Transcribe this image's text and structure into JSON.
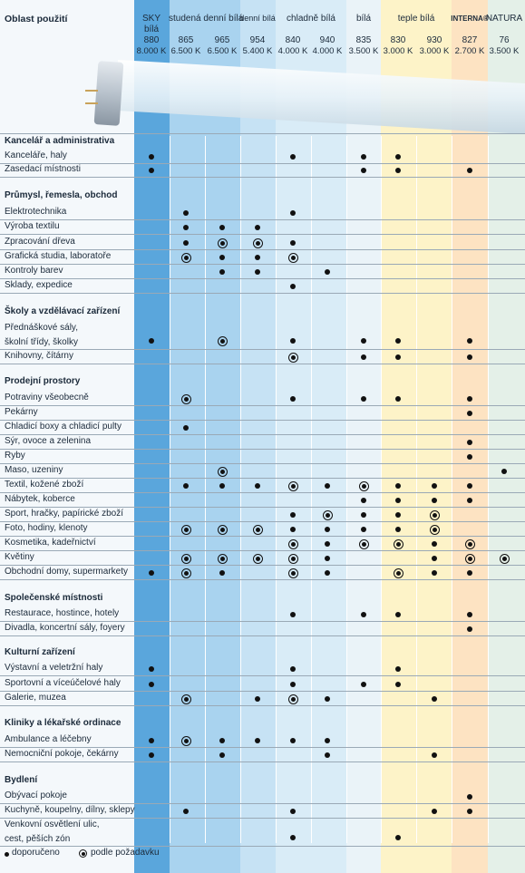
{
  "header": {
    "area_label": "Oblast použití",
    "groups": [
      {
        "label": "SKY"
      },
      {
        "label": "studená denní bílá"
      },
      {
        "label": "denní bílá"
      },
      {
        "label": "chladně bílá"
      },
      {
        "label": "bílá"
      },
      {
        "label": "teple bílá"
      },
      {
        "label": "INTERNA®"
      },
      {
        "label": "NATURA"
      }
    ],
    "columns": [
      {
        "sub": "bílá",
        "code": "880",
        "temp": "8.000 K"
      },
      {
        "sub": "",
        "code": "865",
        "temp": "6.500 K"
      },
      {
        "sub": "",
        "code": "965",
        "temp": "6.500 K"
      },
      {
        "sub": "",
        "code": "954",
        "temp": "5.400 K"
      },
      {
        "sub": "",
        "code": "840",
        "temp": "4.000 K"
      },
      {
        "sub": "",
        "code": "940",
        "temp": "4.000 K"
      },
      {
        "sub": "",
        "code": "835",
        "temp": "3.500 K"
      },
      {
        "sub": "",
        "code": "830",
        "temp": "3.000 K"
      },
      {
        "sub": "",
        "code": "930",
        "temp": "3.000 K"
      },
      {
        "sub": "",
        "code": "827",
        "temp": "2.700 K"
      },
      {
        "sub": "",
        "code": "76",
        "temp": "3.500 K"
      }
    ]
  },
  "colors": {
    "band_sky": "#5aa6dc",
    "band_cool_daylight": "#a9d3ef",
    "band_daylight": "#c6e2f4",
    "band_cool_white": "#d9ecf7",
    "band_white": "#eaf3f8",
    "band_warm_white": "#fdf3c8",
    "band_interna": "#fde3c2",
    "band_natura": "#e4f0e8"
  },
  "sections": [
    {
      "title": "Kancelář a administrativa",
      "rows": [
        {
          "label": "Kanceláře, haly",
          "marks": [
            "d",
            "",
            "",
            "",
            "d",
            "",
            "d",
            "d",
            "",
            "",
            ""
          ]
        },
        {
          "label": "Zasedací místnosti",
          "marks": [
            "d",
            "",
            "",
            "",
            "",
            "",
            "d",
            "d",
            "",
            "d",
            ""
          ]
        }
      ]
    },
    {
      "title": "Průmysl, řemesla, obchod",
      "rows": [
        {
          "label": "Elektrotechnika",
          "marks": [
            "",
            "d",
            "",
            "",
            "d",
            "",
            "",
            "",
            "",
            "",
            ""
          ]
        },
        {
          "label": "Výroba textilu",
          "marks": [
            "",
            "d",
            "d",
            "d",
            "",
            "",
            "",
            "",
            "",
            "",
            ""
          ]
        },
        {
          "label": "Zpracování dřeva",
          "marks": [
            "",
            "d",
            "o",
            "o",
            "d",
            "",
            "",
            "",
            "",
            "",
            ""
          ]
        },
        {
          "label": "Grafická studia, laboratoře",
          "marks": [
            "",
            "o",
            "d",
            "d",
            "o",
            "",
            "",
            "",
            "",
            "",
            ""
          ]
        },
        {
          "label": "Kontroly barev",
          "marks": [
            "",
            "",
            "d",
            "d",
            "",
            "d",
            "",
            "",
            "",
            "",
            ""
          ]
        },
        {
          "label": "Sklady, expedice",
          "marks": [
            "",
            "",
            "",
            "",
            "d",
            "",
            "",
            "",
            "",
            "",
            ""
          ]
        }
      ]
    },
    {
      "title": "Školy a vzdělávací zařízení",
      "rows": [
        {
          "label": "Přednáškové sály,",
          "label2": "školní třídy, školky",
          "marks": [
            "d",
            "",
            "o",
            "",
            "d",
            "",
            "d",
            "d",
            "",
            "d",
            ""
          ]
        },
        {
          "label": "Knihovny, čítárny",
          "marks": [
            "",
            "",
            "",
            "",
            "o",
            "",
            "d",
            "d",
            "",
            "d",
            ""
          ]
        }
      ]
    },
    {
      "title": "Prodejní prostory",
      "rows": [
        {
          "label": "Potraviny všeobecně",
          "marks": [
            "",
            "o",
            "",
            "",
            "d",
            "",
            "d",
            "d",
            "",
            "d",
            ""
          ]
        },
        {
          "label": "Pekárny",
          "marks": [
            "",
            "",
            "",
            "",
            "",
            "",
            "",
            "",
            "",
            "d",
            ""
          ]
        },
        {
          "label": "Chladicí boxy a chladicí pulty",
          "marks": [
            "",
            "d",
            "",
            "",
            "",
            "",
            "",
            "",
            "",
            "",
            ""
          ]
        },
        {
          "label": "Sýr, ovoce a zelenina",
          "marks": [
            "",
            "",
            "",
            "",
            "",
            "",
            "",
            "",
            "",
            "d",
            ""
          ]
        },
        {
          "label": "Ryby",
          "marks": [
            "",
            "",
            "",
            "",
            "",
            "",
            "",
            "",
            "",
            "d",
            ""
          ]
        },
        {
          "label": "Maso, uzeniny",
          "marks": [
            "",
            "",
            "o",
            "",
            "",
            "",
            "",
            "",
            "",
            "",
            "d"
          ]
        },
        {
          "label": "Textil, kožené zboží",
          "marks": [
            "",
            "d",
            "d",
            "d",
            "o",
            "d",
            "o",
            "d",
            "d",
            "d",
            ""
          ]
        },
        {
          "label": "Nábytek, koberce",
          "marks": [
            "",
            "",
            "",
            "",
            "",
            "",
            "d",
            "d",
            "d",
            "d",
            ""
          ]
        },
        {
          "label": "Sport, hračky, papírické zboží",
          "marks": [
            "",
            "",
            "",
            "",
            "d",
            "o",
            "d",
            "d",
            "o",
            "",
            ""
          ]
        },
        {
          "label": "Foto, hodiny, klenoty",
          "marks": [
            "",
            "o",
            "o",
            "o",
            "d",
            "d",
            "d",
            "d",
            "o",
            "",
            ""
          ]
        },
        {
          "label": "Kosmetika, kadeřnictví",
          "marks": [
            "",
            "",
            "",
            "",
            "o",
            "d",
            "o",
            "o",
            "d",
            "o",
            ""
          ]
        },
        {
          "label": "Květiny",
          "marks": [
            "",
            "o",
            "o",
            "o",
            "o",
            "d",
            "",
            "",
            "d",
            "o",
            "o"
          ]
        },
        {
          "label": "Obchodní domy, supermarkety",
          "marks": [
            "d",
            "o",
            "d",
            "",
            "o",
            "d",
            "",
            "o",
            "d",
            "d",
            ""
          ]
        }
      ]
    },
    {
      "title": "Společenské místnosti",
      "rows": [
        {
          "label": "Restaurace, hostince, hotely",
          "marks": [
            "",
            "",
            "",
            "",
            "d",
            "",
            "d",
            "d",
            "",
            "d",
            ""
          ]
        },
        {
          "label": "Divadla, koncertní sály, foyery",
          "marks": [
            "",
            "",
            "",
            "",
            "",
            "",
            "",
            "",
            "",
            "d",
            ""
          ]
        }
      ]
    },
    {
      "title": "Kulturní zařízení",
      "rows": [
        {
          "label": "Výstavní a veletržní haly",
          "marks": [
            "d",
            "",
            "",
            "",
            "d",
            "",
            "",
            "d",
            "",
            "",
            ""
          ]
        },
        {
          "label": "Sportovní a víceúčelové haly",
          "marks": [
            "d",
            "",
            "",
            "",
            "d",
            "",
            "d",
            "d",
            "",
            "",
            ""
          ]
        },
        {
          "label": "Galerie, muzea",
          "marks": [
            "",
            "o",
            "",
            "d",
            "o",
            "d",
            "",
            "",
            "d",
            "",
            ""
          ]
        }
      ]
    },
    {
      "title": "Kliniky a lékařské ordinace",
      "rows": [
        {
          "label": "Ambulance a léčebny",
          "marks": [
            "d",
            "o",
            "d",
            "d",
            "d",
            "d",
            "",
            "",
            "",
            "",
            ""
          ]
        },
        {
          "label": "Nemocniční pokoje, čekárny",
          "marks": [
            "d",
            "",
            "d",
            "",
            "",
            "d",
            "",
            "",
            "d",
            "",
            ""
          ]
        }
      ]
    },
    {
      "title": "Bydlení",
      "rows": [
        {
          "label": "Obývací pokoje",
          "marks": [
            "",
            "",
            "",
            "",
            "",
            "",
            "",
            "",
            "",
            "d",
            ""
          ]
        },
        {
          "label": "Kuchyně, koupelny, dílny, sklepy",
          "marks": [
            "",
            "d",
            "",
            "",
            "d",
            "",
            "",
            "",
            "d",
            "d",
            ""
          ]
        },
        {
          "label": "Venkovní osvětlení ulic,",
          "label2": "cest, pěších zón",
          "marks": [
            "",
            "",
            "",
            "",
            "d",
            "",
            "",
            "d",
            "",
            "",
            ""
          ]
        }
      ]
    }
  ],
  "legend": {
    "recommended": "doporučeno",
    "on_request": "podle požadavku"
  }
}
